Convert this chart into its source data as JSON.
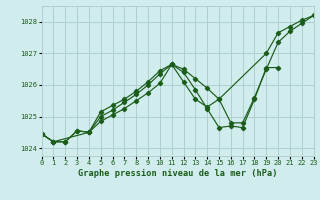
{
  "background_color": "#d0ecec",
  "grid_color": "#b0d0d0",
  "line_color": "#1a5c1a",
  "title": "Graphe pression niveau de la mer (hPa)",
  "xlim": [
    0,
    23
  ],
  "ylim": [
    1023.75,
    1028.5
  ],
  "yticks": [
    1024,
    1025,
    1026,
    1027,
    1028
  ],
  "xticks": [
    0,
    1,
    2,
    3,
    4,
    5,
    6,
    7,
    8,
    9,
    10,
    11,
    12,
    13,
    14,
    15,
    16,
    17,
    18,
    19,
    20,
    21,
    22,
    23
  ],
  "series1_x": [
    0,
    1,
    2,
    3,
    4,
    5,
    6,
    7,
    8,
    9,
    10,
    11,
    12,
    13,
    14,
    15,
    16,
    17,
    18,
    19,
    20,
    21,
    22,
    23
  ],
  "series1_y": [
    1024.45,
    1024.2,
    1024.2,
    1024.55,
    1024.5,
    1025.0,
    1025.2,
    1025.45,
    1025.7,
    1026.0,
    1026.35,
    1026.65,
    1026.5,
    1026.2,
    1025.9,
    1025.55,
    1024.8,
    1024.8,
    1025.6,
    1026.5,
    1027.35,
    1027.7,
    1027.95,
    1028.2
  ],
  "series2_x": [
    0,
    1,
    4,
    5,
    6,
    7,
    8,
    9,
    10,
    11,
    12,
    13,
    14,
    15,
    19,
    20,
    21,
    22,
    23
  ],
  "series2_y": [
    1024.45,
    1024.2,
    1024.5,
    1025.15,
    1025.35,
    1025.55,
    1025.8,
    1026.1,
    1026.45,
    1026.65,
    1026.1,
    1025.55,
    1025.3,
    1025.55,
    1027.0,
    1027.65,
    1027.85,
    1028.05,
    1028.2
  ],
  "series3_x": [
    0,
    1,
    2,
    3,
    4,
    5,
    6,
    7,
    8,
    9,
    10,
    11,
    12,
    13,
    14,
    15,
    16,
    17,
    18,
    19,
    20
  ],
  "series3_y": [
    1024.45,
    1024.2,
    1024.2,
    1024.55,
    1024.5,
    1024.85,
    1025.05,
    1025.25,
    1025.5,
    1025.75,
    1026.05,
    1026.65,
    1026.4,
    1025.85,
    1025.25,
    1024.65,
    1024.7,
    1024.65,
    1025.55,
    1026.55,
    1026.55
  ]
}
